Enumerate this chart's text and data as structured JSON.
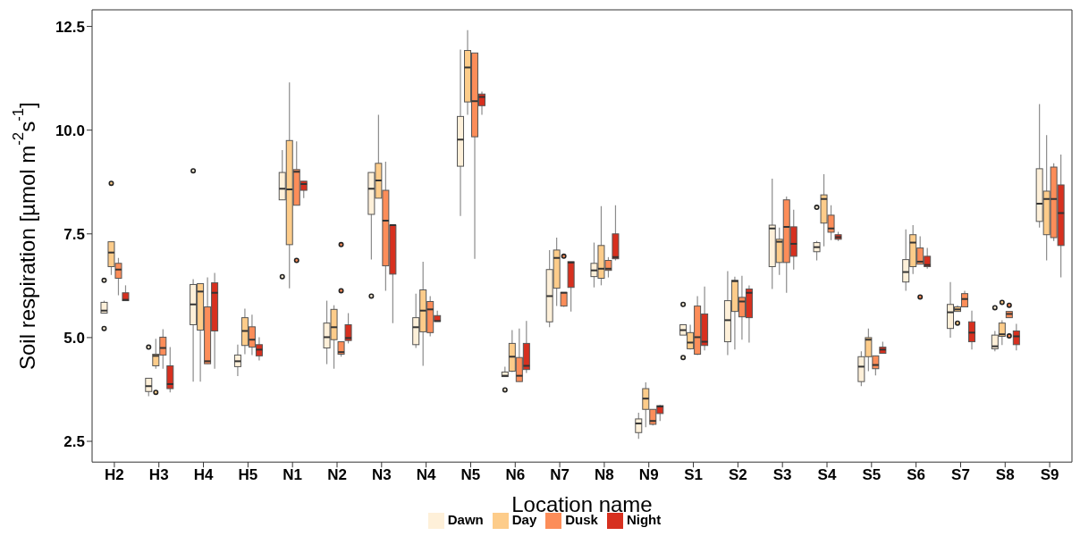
{
  "chart_data": {
    "type": "box",
    "xlabel": "Location name",
    "ylabel": "Soil respiration [µmol m$^{-2}$s$^{-1}$]",
    "categories": [
      "H2",
      "H3",
      "H4",
      "H5",
      "N1",
      "N2",
      "N3",
      "N4",
      "N5",
      "N6",
      "N7",
      "N8",
      "N9",
      "S1",
      "S2",
      "S3",
      "S4",
      "S5",
      "S6",
      "S7",
      "S8",
      "S9"
    ],
    "ylim": [
      2.0,
      12.9
    ],
    "yticks": [
      2.5,
      {
        "value": 5,
        "label": "5.0"
      },
      7.5,
      {
        "value": 10,
        "label": "10.0"
      },
      12.5
    ],
    "grid": false,
    "legend": "bottom",
    "series": [
      {
        "name": "Dawn",
        "color": "#fef0d9",
        "boxes": [
          {
            "low": 5.59,
            "q1": 5.59,
            "median": 5.65,
            "q3": 5.85,
            "high": 5.89,
            "outliers": [
              6.38,
              5.22
            ]
          },
          {
            "low": 3.59,
            "q1": 3.7,
            "median": 3.83,
            "q3": 4.02,
            "high": 4.02,
            "outliers": [
              4.77
            ]
          },
          {
            "low": 3.94,
            "q1": 5.31,
            "median": 5.8,
            "q3": 6.28,
            "high": 6.41,
            "outliers": [
              9.02
            ]
          },
          {
            "low": 4.07,
            "q1": 4.3,
            "median": 4.43,
            "q3": 4.58,
            "high": 4.83
          },
          {
            "low": 8.32,
            "q1": 8.32,
            "median": 8.59,
            "q3": 8.98,
            "high": 9.52,
            "outliers": [
              6.47
            ]
          },
          {
            "low": 4.36,
            "q1": 4.75,
            "median": 5.01,
            "q3": 5.35,
            "high": 5.89
          },
          {
            "low": 6.88,
            "q1": 7.97,
            "median": 8.59,
            "q3": 8.98,
            "high": 8.98,
            "outliers": [
              6.0
            ]
          },
          {
            "low": 4.75,
            "q1": 4.83,
            "median": 5.25,
            "q3": 5.48,
            "high": 6.06
          },
          {
            "low": 7.93,
            "q1": 9.13,
            "median": 9.77,
            "q3": 10.33,
            "high": 11.94
          },
          {
            "low": 4.06,
            "q1": 4.06,
            "median": 4.08,
            "q3": 4.17,
            "high": 4.3,
            "outliers": [
              3.74
            ]
          },
          {
            "low": 5.25,
            "q1": 5.38,
            "median": 6.0,
            "q3": 6.64,
            "high": 7.11
          },
          {
            "low": 6.21,
            "q1": 6.47,
            "median": 6.62,
            "q3": 6.79,
            "high": 7.29
          },
          {
            "low": 2.56,
            "q1": 2.71,
            "median": 2.93,
            "q3": 3.04,
            "high": 3.19
          },
          {
            "low": 5.06,
            "q1": 5.06,
            "median": 5.18,
            "q3": 5.31,
            "high": 5.31,
            "outliers": [
              5.8,
              4.52
            ]
          },
          {
            "low": 4.58,
            "q1": 4.9,
            "median": 5.42,
            "q3": 5.89,
            "high": 6.6
          },
          {
            "low": 6.17,
            "q1": 6.71,
            "median": 7.63,
            "q3": 7.71,
            "high": 8.83
          },
          {
            "low": 6.86,
            "q1": 7.07,
            "median": 7.18,
            "q3": 7.29,
            "high": 7.33,
            "outliers": [
              8.14
            ]
          },
          {
            "low": 3.83,
            "q1": 3.94,
            "median": 4.3,
            "q3": 4.54,
            "high": 4.67
          },
          {
            "low": 6.13,
            "q1": 6.34,
            "median": 6.58,
            "q3": 6.88,
            "high": 7.61
          },
          {
            "low": 5.0,
            "q1": 5.22,
            "median": 5.61,
            "q3": 5.8,
            "high": 6.34
          },
          {
            "low": 4.67,
            "q1": 4.73,
            "median": 4.79,
            "q3": 5.06,
            "high": 5.16,
            "outliers": [
              5.72
            ]
          },
          {
            "low": 7.65,
            "q1": 7.8,
            "median": 8.23,
            "q3": 9.07,
            "high": 10.63
          }
        ]
      },
      {
        "name": "Day",
        "color": "#fdcc8a",
        "boxes": [
          {
            "low": 6.51,
            "q1": 6.71,
            "median": 7.05,
            "q3": 7.31,
            "high": 7.31,
            "outliers": [
              8.72
            ]
          },
          {
            "low": 4.25,
            "q1": 4.32,
            "median": 4.56,
            "q3": 4.6,
            "high": 4.97,
            "outliers": [
              3.68
            ]
          },
          {
            "low": 3.94,
            "q1": 5.18,
            "median": 6.11,
            "q3": 6.3,
            "high": 6.3
          },
          {
            "low": 4.6,
            "q1": 4.81,
            "median": 5.16,
            "q3": 5.48,
            "high": 5.7
          },
          {
            "low": 6.19,
            "q1": 7.24,
            "median": 8.57,
            "q3": 9.75,
            "high": 11.15
          },
          {
            "low": 4.25,
            "q1": 4.95,
            "median": 5.25,
            "q3": 5.68,
            "high": 5.78
          },
          {
            "low": 8.36,
            "q1": 8.36,
            "median": 8.79,
            "q3": 9.2,
            "high": 10.37
          },
          {
            "low": 4.32,
            "q1": 5.14,
            "median": 5.65,
            "q3": 6.15,
            "high": 6.83
          },
          {
            "low": 10.37,
            "q1": 10.68,
            "median": 11.51,
            "q3": 11.92,
            "high": 12.41
          },
          {
            "low": 4.17,
            "q1": 4.19,
            "median": 4.54,
            "q3": 4.86,
            "high": 5.18
          },
          {
            "low": 5.76,
            "q1": 6.19,
            "median": 6.92,
            "q3": 7.11,
            "high": 7.41
          },
          {
            "low": 6.26,
            "q1": 6.43,
            "median": 6.66,
            "q3": 7.22,
            "high": 8.17
          },
          {
            "low": 2.84,
            "q1": 3.27,
            "median": 3.53,
            "q3": 3.77,
            "high": 3.92
          },
          {
            "low": 4.71,
            "q1": 4.73,
            "median": 4.88,
            "q3": 5.12,
            "high": 5.31
          },
          {
            "low": 4.71,
            "q1": 5.63,
            "median": 6.36,
            "q3": 6.38,
            "high": 6.47
          },
          {
            "low": 6.51,
            "q1": 6.81,
            "median": 7.31,
            "q3": 7.37,
            "high": 7.65
          },
          {
            "low": 7.2,
            "q1": 7.76,
            "median": 8.34,
            "q3": 8.44,
            "high": 8.94
          },
          {
            "low": 4.19,
            "q1": 4.54,
            "median": 4.95,
            "q3": 5.0,
            "high": 5.22
          },
          {
            "low": 6.53,
            "q1": 6.71,
            "median": 7.29,
            "q3": 7.48,
            "high": 7.71
          },
          {
            "low": 5.63,
            "q1": 5.63,
            "median": 5.68,
            "q3": 5.74,
            "high": 5.78,
            "outliers": [
              5.35
            ]
          },
          {
            "low": 4.82,
            "q1": 5.03,
            "median": 5.08,
            "q3": 5.35,
            "high": 5.42,
            "outliers": [
              5.85
            ]
          },
          {
            "low": 6.86,
            "q1": 7.48,
            "median": 8.34,
            "q3": 8.53,
            "high": 9.88
          }
        ]
      },
      {
        "name": "Dusk",
        "color": "#fc8d59",
        "boxes": [
          {
            "low": 6.02,
            "q1": 6.43,
            "median": 6.64,
            "q3": 6.79,
            "high": 6.92
          },
          {
            "low": 4.25,
            "q1": 4.58,
            "median": 4.75,
            "q3": 5.01,
            "high": 5.2
          },
          {
            "low": 4.37,
            "q1": 4.37,
            "median": 4.43,
            "q3": 5.74,
            "high": 6.45
          },
          {
            "low": 4.58,
            "q1": 4.77,
            "median": 4.95,
            "q3": 5.26,
            "high": 5.55
          },
          {
            "low": 8.19,
            "q1": 8.19,
            "median": 9.0,
            "q3": 9.05,
            "high": 9.73,
            "outliers": [
              6.86
            ]
          },
          {
            "low": 4.54,
            "q1": 4.6,
            "median": 4.65,
            "q3": 4.9,
            "high": 4.9,
            "outliers": [
              7.24,
              6.13
            ]
          },
          {
            "low": 6.13,
            "q1": 6.73,
            "median": 7.82,
            "q3": 8.55,
            "high": 9.24
          },
          {
            "low": 5.03,
            "q1": 5.12,
            "median": 5.68,
            "q3": 5.87,
            "high": 6.0
          },
          {
            "low": 6.9,
            "q1": 9.84,
            "median": 10.7,
            "q3": 11.86,
            "high": 11.86
          },
          {
            "low": 3.94,
            "q1": 3.94,
            "median": 4.08,
            "q3": 4.52,
            "high": 5.22
          },
          {
            "low": 5.74,
            "q1": 5.76,
            "median": 6.08,
            "q3": 6.09,
            "high": 6.09,
            "outliers": [
              6.96
            ]
          },
          {
            "low": 6.45,
            "q1": 6.62,
            "median": 6.66,
            "q3": 6.86,
            "high": 6.94
          },
          {
            "low": 2.88,
            "q1": 2.91,
            "median": 2.99,
            "q3": 3.27,
            "high": 3.27
          },
          {
            "low": 4.58,
            "q1": 4.6,
            "median": 5.01,
            "q3": 5.76,
            "high": 6.0
          },
          {
            "low": 4.95,
            "q1": 5.5,
            "median": 5.87,
            "q3": 5.97,
            "high": 6.49
          },
          {
            "low": 6.08,
            "q1": 6.81,
            "median": 7.67,
            "q3": 8.32,
            "high": 8.4
          },
          {
            "low": 7.35,
            "q1": 7.54,
            "median": 7.63,
            "q3": 7.95,
            "high": 8.19
          },
          {
            "low": 4.09,
            "q1": 4.25,
            "median": 4.34,
            "q3": 4.56,
            "high": 4.56
          },
          {
            "low": 6.77,
            "q1": 6.77,
            "median": 6.83,
            "q3": 7.16,
            "high": 7.44,
            "outliers": [
              5.98
            ]
          },
          {
            "low": 5.74,
            "q1": 5.74,
            "median": 5.93,
            "q3": 6.06,
            "high": 6.13
          },
          {
            "low": 5.48,
            "q1": 5.48,
            "median": 5.57,
            "q3": 5.63,
            "high": 5.63,
            "outliers": [
              5.78,
              5.04
            ]
          },
          {
            "low": 7.33,
            "q1": 7.41,
            "median": 8.34,
            "q3": 9.11,
            "high": 9.2
          }
        ]
      },
      {
        "name": "Night",
        "color": "#d7301f",
        "boxes": [
          {
            "low": 5.89,
            "q1": 5.89,
            "median": 5.91,
            "q3": 6.08,
            "high": 6.26
          },
          {
            "low": 3.68,
            "q1": 3.77,
            "median": 3.88,
            "q3": 4.32,
            "high": 4.77
          },
          {
            "low": 4.25,
            "q1": 5.16,
            "median": 6.08,
            "q3": 6.32,
            "high": 6.56
          },
          {
            "low": 4.45,
            "q1": 4.56,
            "median": 4.71,
            "q3": 4.83,
            "high": 5.01
          },
          {
            "low": 8.36,
            "q1": 8.55,
            "median": 8.7,
            "q3": 8.77,
            "high": 8.77
          },
          {
            "low": 4.86,
            "q1": 4.93,
            "median": 4.99,
            "q3": 5.31,
            "high": 5.59
          },
          {
            "low": 5.35,
            "q1": 6.53,
            "median": 7.71,
            "q3": 7.71,
            "high": 7.71
          },
          {
            "low": 5.39,
            "q1": 5.39,
            "median": 5.4,
            "q3": 5.53,
            "high": 5.65
          },
          {
            "low": 10.37,
            "q1": 10.59,
            "median": 10.8,
            "q3": 10.87,
            "high": 10.93
          },
          {
            "low": 4.15,
            "q1": 4.23,
            "median": 4.32,
            "q3": 4.86,
            "high": 5.4
          },
          {
            "low": 5.63,
            "q1": 6.21,
            "median": 6.81,
            "q3": 6.83,
            "high": 6.83
          },
          {
            "low": 6.86,
            "q1": 6.9,
            "median": 6.94,
            "q3": 7.5,
            "high": 8.19
          },
          {
            "low": 2.99,
            "q1": 3.17,
            "median": 3.34,
            "q3": 3.36,
            "high": 3.38
          },
          {
            "low": 4.69,
            "q1": 4.81,
            "median": 4.9,
            "q3": 5.57,
            "high": 6.23
          },
          {
            "low": 4.88,
            "q1": 5.48,
            "median": 6.08,
            "q3": 6.17,
            "high": 6.26
          },
          {
            "low": 6.64,
            "q1": 6.96,
            "median": 7.26,
            "q3": 7.67,
            "high": 8.08
          },
          {
            "low": 7.33,
            "q1": 7.37,
            "median": 7.42,
            "q3": 7.48,
            "high": 7.55
          },
          {
            "low": 4.62,
            "q1": 4.62,
            "median": 4.71,
            "q3": 4.77,
            "high": 4.9
          },
          {
            "low": 6.66,
            "q1": 6.71,
            "median": 6.75,
            "q3": 6.96,
            "high": 7.16
          },
          {
            "low": 4.71,
            "q1": 4.9,
            "median": 5.12,
            "q3": 5.38,
            "high": 5.65
          },
          {
            "low": 4.69,
            "q1": 4.83,
            "median": 5.03,
            "q3": 5.16,
            "high": 5.33
          },
          {
            "low": 6.45,
            "q1": 7.22,
            "median": 8.0,
            "q3": 8.68,
            "high": 9.41
          }
        ]
      }
    ]
  }
}
